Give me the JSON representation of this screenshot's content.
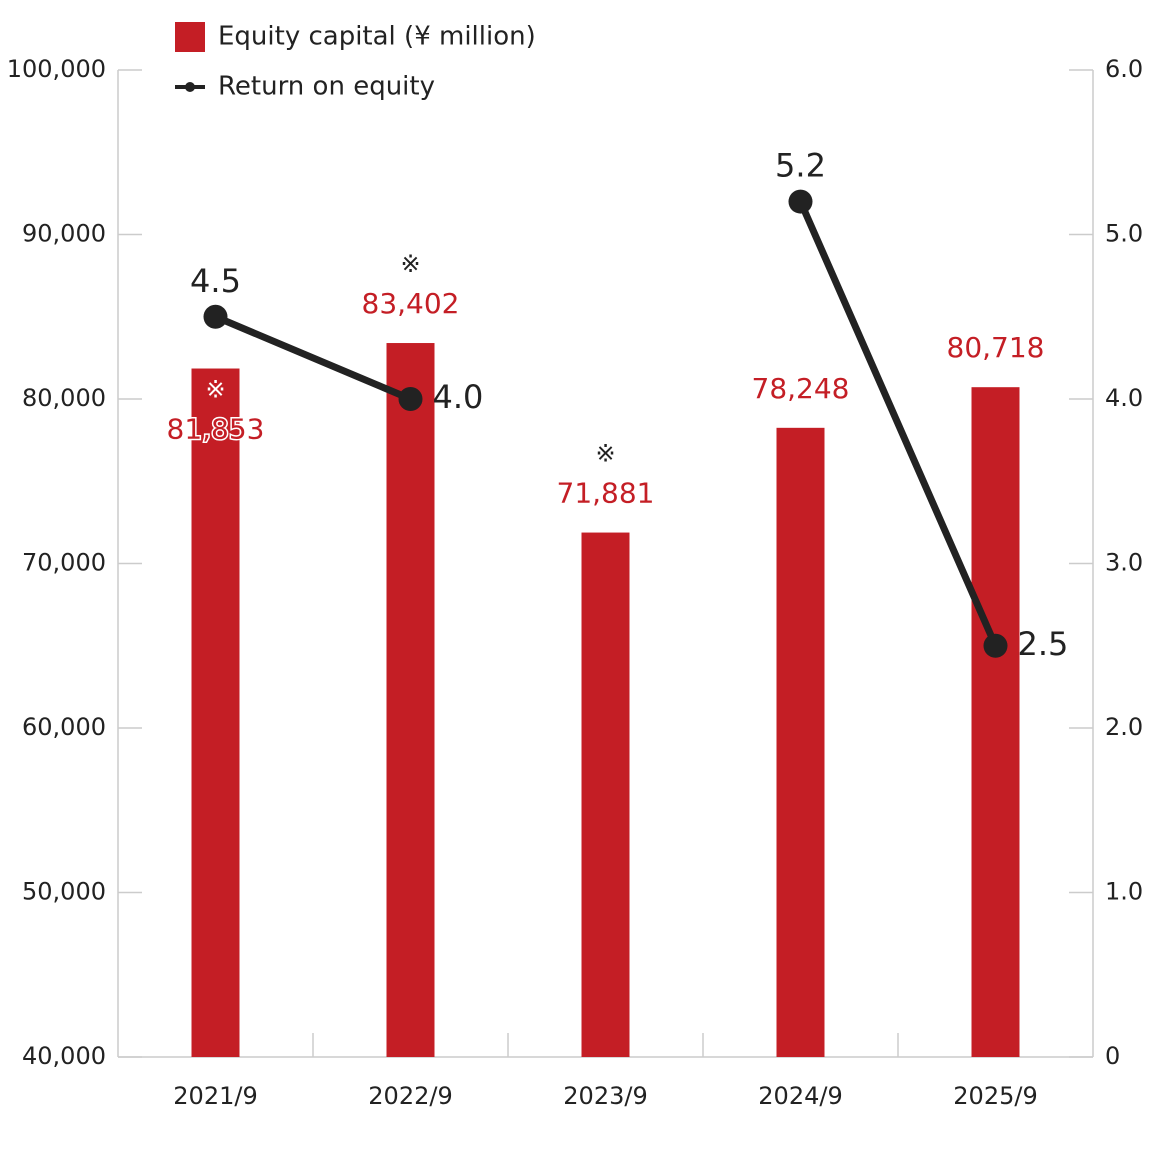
{
  "chart_data": {
    "type": "bar",
    "categories": [
      "2021/9",
      "2022/9",
      "2023/9",
      "2024/9",
      "2025/9"
    ],
    "series": [
      {
        "name": "Equity capital (¥ million)",
        "type": "bar",
        "color": "#c41e25",
        "values": [
          81853,
          83402,
          71881,
          78248,
          80718
        ],
        "value_labels": [
          "81,853",
          "83,402",
          "71,881",
          "78,248",
          "80,718"
        ],
        "notes": [
          "※",
          "※",
          "※",
          null,
          null
        ]
      },
      {
        "name": "Return on equity",
        "type": "line",
        "axis": "y2",
        "color": "#222222",
        "values": [
          4.5,
          4.0,
          null,
          5.2,
          2.5
        ],
        "value_labels": [
          "4.5",
          "4.0",
          null,
          "5.2",
          "2.5"
        ]
      }
    ],
    "ylim": [
      40000,
      100000
    ],
    "yticks": [
      {
        "value": 40000,
        "label": "40,000"
      },
      {
        "value": 50000,
        "label": "50,000"
      },
      {
        "value": 60000,
        "label": "60,000"
      },
      {
        "value": 70000,
        "label": "70,000"
      },
      {
        "value": 80000,
        "label": "80,000"
      },
      {
        "value": 90000,
        "label": "90,000"
      },
      {
        "value": 100000,
        "label": "100,000"
      }
    ],
    "y2lim": [
      0,
      6
    ],
    "y2ticks": [
      0,
      {
        "value": 1,
        "label": "1.0"
      },
      {
        "value": 2,
        "label": "2.0"
      },
      {
        "value": 3,
        "label": "3.0"
      },
      {
        "value": 4,
        "label": "4.0"
      },
      {
        "value": 5,
        "label": "5.0"
      },
      {
        "value": 6,
        "label": "6.0"
      }
    ],
    "legend": "top-left"
  }
}
